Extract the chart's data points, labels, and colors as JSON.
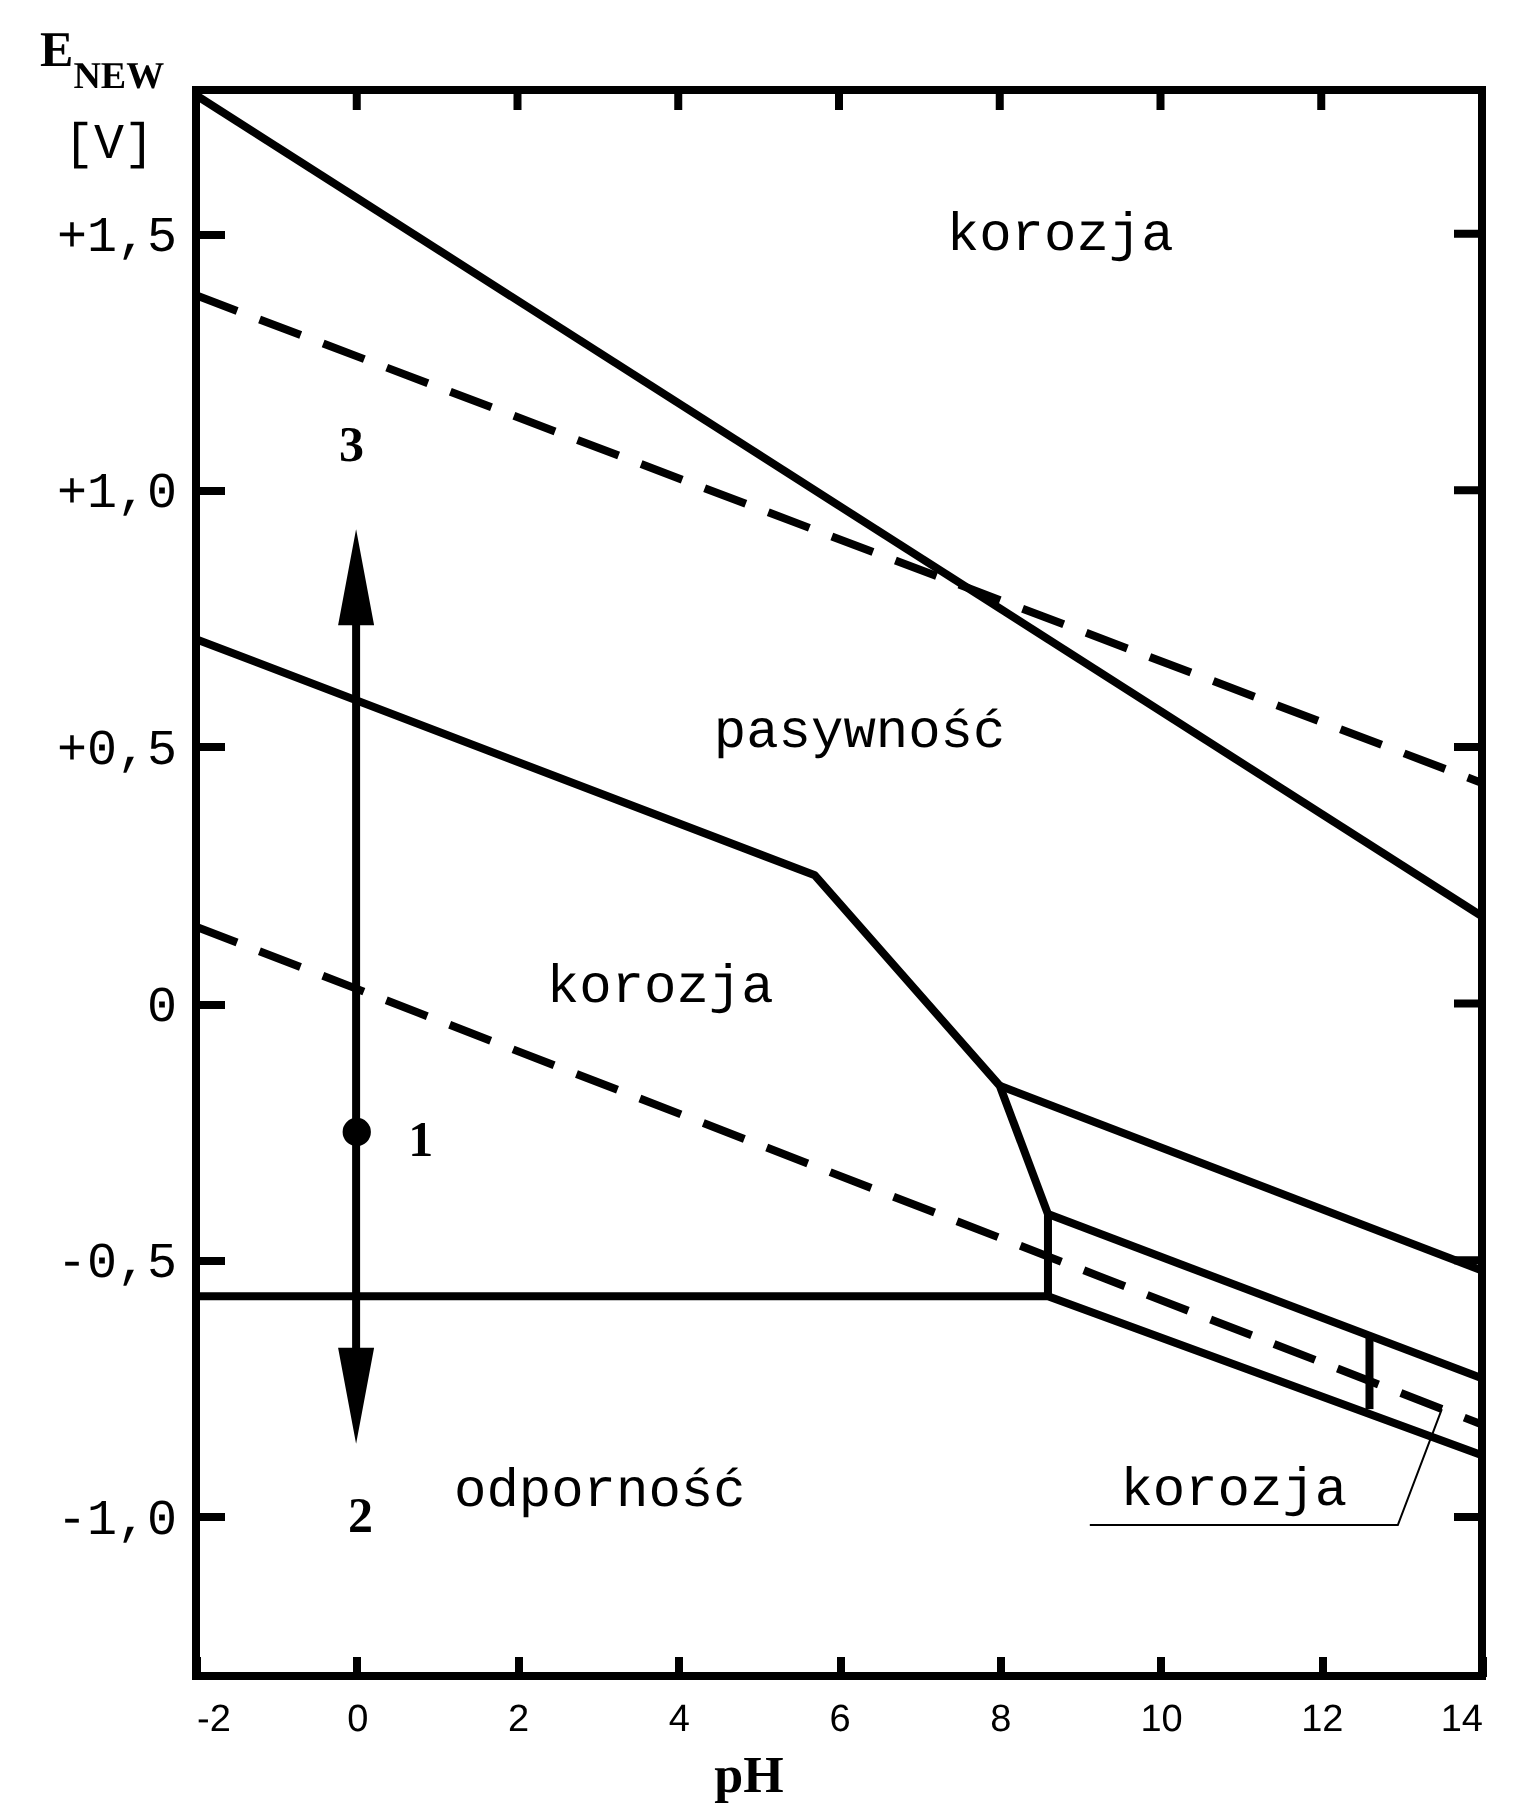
{
  "chart_data": {
    "type": "line",
    "xlabel": "pH",
    "ylabel": "E$_{NEW}$ [V]",
    "xlim": [
      -2,
      14
    ],
    "ylim": [
      -1.31,
      1.78
    ],
    "xticks": [
      -2,
      0,
      2,
      4,
      6,
      8,
      10,
      12,
      14
    ],
    "yticks": [
      {
        "value": 1.5,
        "label": "+1,5"
      },
      {
        "value": 1,
        "label": "+1,0"
      },
      {
        "value": 0.5,
        "label": "+0,5"
      },
      {
        "value": 0,
        "label": "0"
      },
      {
        "value": -0.5,
        "label": "-0,5"
      },
      {
        "value": -1,
        "label": "-1,0"
      }
    ],
    "series": [
      {
        "color": "#000000",
        "line_style": "solid",
        "x": [
          -2,
          14
        ],
        "values": [
          1.77,
          0.17
        ]
      },
      {
        "color": "#000000",
        "line_style": "dashed",
        "x": [
          -2,
          14
        ],
        "values": [
          1.38,
          0.43
        ]
      },
      {
        "color": "#000000",
        "line_style": "solid",
        "x": [
          -2,
          5.7,
          8.0,
          8.6,
          8.6
        ],
        "values": [
          0.71,
          0.25,
          -0.16,
          -0.41,
          -0.57
        ]
      },
      {
        "color": "#000000",
        "line_style": "solid",
        "x": [
          -2,
          8.6,
          14
        ],
        "values": [
          -0.57,
          -0.57,
          -0.88
        ]
      },
      {
        "color": "#000000",
        "line_style": "solid",
        "x": [
          8.0,
          14
        ],
        "values": [
          -0.16,
          -0.52
        ]
      },
      {
        "color": "#000000",
        "line_style": "solid",
        "x": [
          8.6,
          14
        ],
        "values": [
          -0.41,
          -0.73
        ]
      },
      {
        "color": "#000000",
        "line_style": "solid",
        "x": [
          12.6,
          12.6
        ],
        "values": [
          -0.65,
          -0.79
        ]
      },
      {
        "color": "#000000",
        "line_style": "dashed",
        "x": [
          -2,
          14
        ],
        "values": [
          0.15,
          -0.82
        ]
      },
      {
        "type": "scatter",
        "color": "#000000",
        "marker": "circle",
        "x": [
          0
        ],
        "values": [
          -0.25
        ]
      }
    ],
    "annotations": [
      "korozja",
      "pasywność",
      "korozja",
      "odporność",
      "3",
      "2",
      {
        "text": "korozja",
        "x": 13.5,
        "y": -0.79
      },
      {
        "text": "1",
        "x": 0,
        "y": -0.25
      }
    ]
  }
}
